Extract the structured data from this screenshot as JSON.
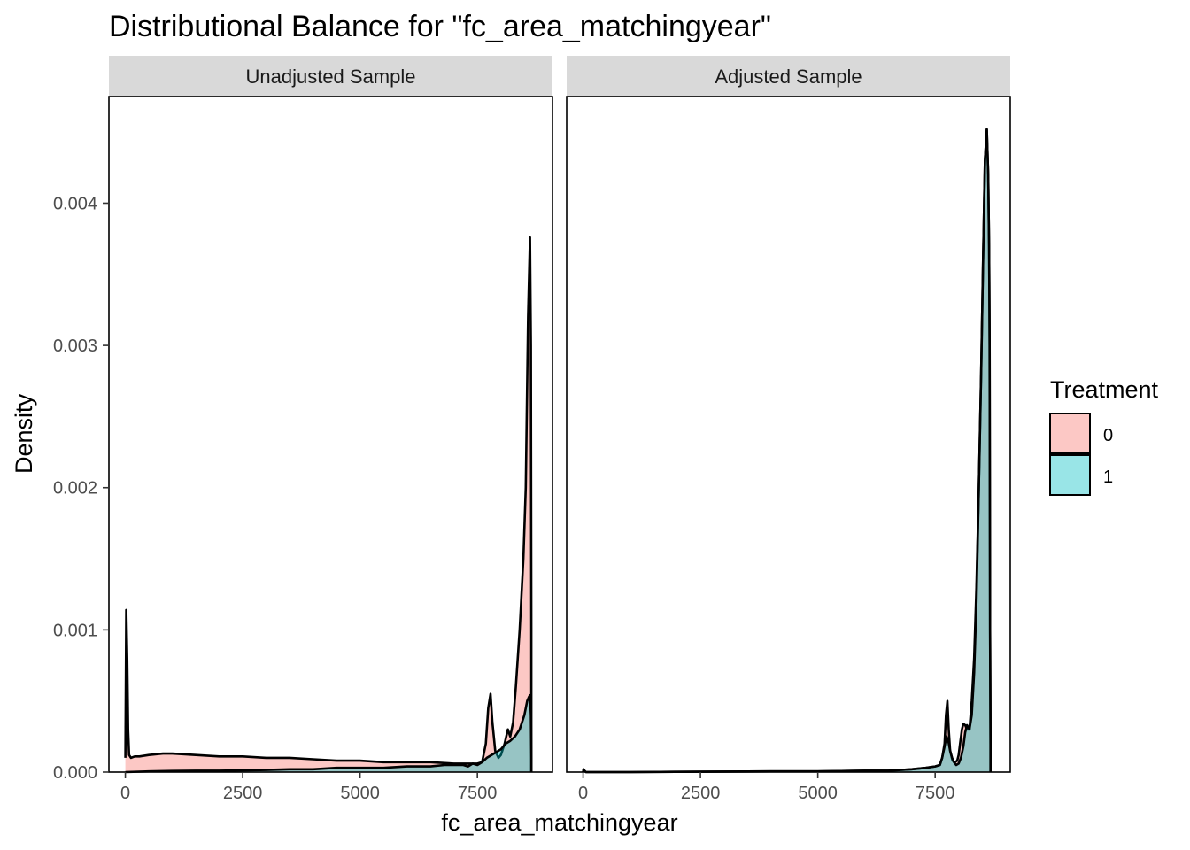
{
  "chart_data": {
    "type": "area",
    "title": "Distributional Balance for \"fc_area_matchingyear\"",
    "xlabel": "fc_area_matchingyear",
    "ylabel": "Density",
    "xlim": [
      -350,
      9100
    ],
    "ylim": [
      0,
      0.00475
    ],
    "x_ticks": [
      0,
      2500,
      5000,
      7500
    ],
    "x_tick_labels": [
      "0",
      "2500",
      "5000",
      "7500"
    ],
    "y_ticks": [
      0,
      0.001,
      0.002,
      0.003,
      0.004
    ],
    "y_tick_labels": [
      "0.000",
      "0.001",
      "0.002",
      "0.003",
      "0.004"
    ],
    "legend": {
      "title": "Treatment",
      "position": "right",
      "items": [
        {
          "label": "0",
          "color": "#F8766D"
        },
        {
          "label": "1",
          "color": "#00BFC4"
        }
      ]
    },
    "series_colors": {
      "0": "#F8766D",
      "1": "#00BFC4"
    },
    "panels": [
      {
        "label": "Unadjusted Sample",
        "series": [
          {
            "name": "0",
            "x": [
              0,
              20,
              40,
              60,
              80,
              120,
              200,
              300,
              500,
              800,
              1000,
              1500,
              2000,
              2500,
              3000,
              3500,
              4000,
              4500,
              5000,
              5500,
              6000,
              6500,
              7000,
              7300,
              7500,
              7600,
              7680,
              7730,
              7780,
              7820,
              7880,
              7950,
              8000,
              8080,
              8150,
              8200,
              8260,
              8320,
              8400,
              8480,
              8530,
              8580,
              8620,
              8640,
              8650,
              8650
            ],
            "y": [
              0.0001,
              0.00114,
              0.0008,
              0.0003,
              0.00012,
              0.0001,
              0.00011,
              0.00011,
              0.00012,
              0.00013,
              0.00013,
              0.00012,
              0.00011,
              0.00011,
              0.0001,
              0.0001,
              9e-05,
              8e-05,
              8e-05,
              7e-05,
              7e-05,
              7e-05,
              6e-05,
              6e-05,
              6e-05,
              7e-05,
              0.0002,
              0.00045,
              0.00055,
              0.00035,
              0.00015,
              0.0001,
              0.00012,
              0.0002,
              0.0003,
              0.00025,
              0.00035,
              0.0006,
              0.001,
              0.0015,
              0.002,
              0.0032,
              0.00376,
              0.003,
              0.001,
              0.0
            ]
          },
          {
            "name": "1",
            "x": [
              0,
              500,
              1000,
              1500,
              2000,
              2500,
              3000,
              3500,
              4000,
              4500,
              5000,
              5500,
              6000,
              6500,
              6800,
              7000,
              7200,
              7300,
              7400,
              7500,
              7600,
              7700,
              7800,
              7900,
              8000,
              8100,
              8200,
              8300,
              8400,
              8500,
              8560,
              8600,
              8620,
              8640,
              8650,
              8650
            ],
            "y": [
              0.0,
              5e-06,
              8e-06,
              1e-05,
              1e-05,
              1.2e-05,
              1.5e-05,
              2e-05,
              2e-05,
              3e-05,
              3e-05,
              3e-05,
              4e-05,
              4e-05,
              5e-05,
              5e-05,
              5e-05,
              4e-05,
              6e-05,
              5e-05,
              7e-05,
              0.0001,
              0.00012,
              0.00014,
              0.00016,
              0.0002,
              0.00022,
              0.00025,
              0.0003,
              0.0004,
              0.0005,
              0.00053,
              0.00054,
              0.0004,
              0.0001,
              0.0
            ]
          }
        ]
      },
      {
        "label": "Adjusted Sample",
        "series": [
          {
            "name": "0",
            "x": [
              0,
              10,
              30,
              60,
              100,
              500,
              1000,
              2000,
              3000,
              4000,
              5000,
              6000,
              6500,
              7000,
              7300,
              7500,
              7600,
              7650,
              7700,
              7730,
              7760,
              7790,
              7820,
              7870,
              7920,
              7970,
              8000,
              8030,
              8070,
              8100,
              8140,
              8180,
              8230,
              8280,
              8330,
              8380,
              8430,
              8480,
              8520,
              8560,
              8600,
              8630,
              8650,
              8660,
              8670,
              8680,
              8680
            ],
            "y": [
              0.0,
              2e-05,
              1e-05,
              0.0,
              0.0,
              0.0,
              0.0,
              2e-06,
              4e-06,
              5e-06,
              5e-06,
              1e-05,
              1e-05,
              2e-05,
              3e-05,
              4e-05,
              5e-05,
              0.0001,
              0.0002,
              0.0004,
              0.0005,
              0.0003,
              0.00015,
              8e-05,
              7e-05,
              8e-05,
              0.00012,
              0.0002,
              0.0003,
              0.00034,
              0.00033,
              0.0003,
              0.0003,
              0.0005,
              0.0008,
              0.0013,
              0.002,
              0.0028,
              0.0036,
              0.0043,
              0.00452,
              0.0042,
              0.0037,
              0.003,
              0.001,
              0.0002,
              0.0
            ]
          },
          {
            "name": "1",
            "x": [
              0,
              10,
              30,
              60,
              100,
              500,
              1000,
              2000,
              3000,
              4000,
              5000,
              6000,
              6500,
              7000,
              7300,
              7500,
              7600,
              7650,
              7700,
              7740,
              7780,
              7820,
              7860,
              7900,
              7950,
              8000,
              8050,
              8100,
              8140,
              8180,
              8230,
              8280,
              8330,
              8380,
              8430,
              8480,
              8520,
              8560,
              8600,
              8630,
              8650,
              8660,
              8670,
              8680,
              8680
            ],
            "y": [
              0.0,
              2e-05,
              1e-05,
              0.0,
              0.0,
              0.0,
              0.0,
              2e-06,
              4e-06,
              5e-06,
              5e-06,
              1e-05,
              1e-05,
              2e-05,
              3e-05,
              4e-05,
              5e-05,
              0.0001,
              0.00018,
              0.00025,
              0.00022,
              0.00015,
              0.0001,
              7e-05,
              5e-05,
              6e-05,
              0.0001,
              0.00018,
              0.00028,
              0.00033,
              0.0003,
              0.0004,
              0.0007,
              0.0012,
              0.002,
              0.0028,
              0.0036,
              0.0043,
              0.00452,
              0.0042,
              0.0037,
              0.003,
              0.001,
              0.0002,
              0.0
            ]
          }
        ]
      }
    ]
  }
}
